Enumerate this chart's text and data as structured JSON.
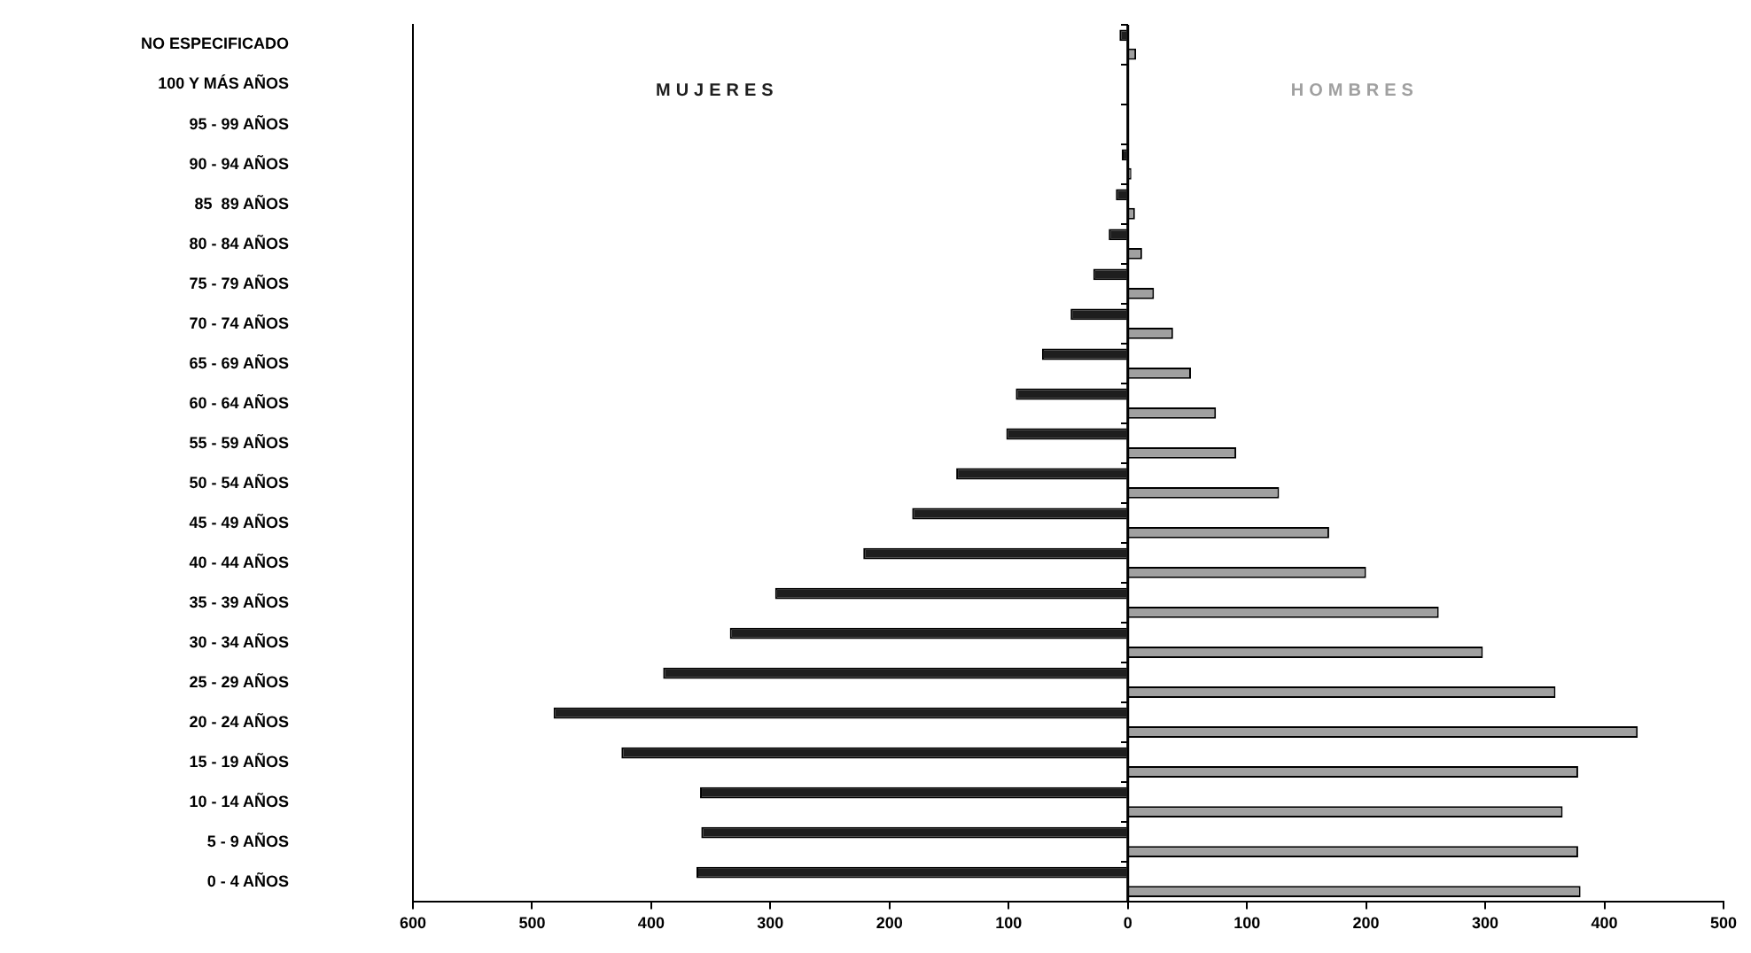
{
  "chart_data": {
    "type": "bar",
    "orientation": "horizontal",
    "categories": [
      "NO ESPECIFICADO",
      "100 Y MÁS AÑOS",
      "95 - 99 AÑOS",
      "90 - 94 AÑOS",
      "85  89 AÑOS",
      "80 - 84 AÑOS",
      "75 - 79 AÑOS",
      "70 - 74 AÑOS",
      "65 - 69 AÑOS",
      "60 - 64 AÑOS",
      "55 - 59 AÑOS",
      "50 - 54 AÑOS",
      "45 - 49 AÑOS",
      "40 - 44 AÑOS",
      "35 - 39 AÑOS",
      "30 - 34 AÑOS",
      "25 - 29 AÑOS",
      "20 - 24 AÑOS",
      "15 - 19 AÑOS",
      "10 - 14 AÑOS",
      "5 - 9 AÑOS",
      "0 - 4 AÑOS"
    ],
    "series": [
      {
        "name": "MUJERES",
        "color": "#1e1e1e",
        "values": [
          -7,
          null,
          null,
          -5,
          -10,
          -16,
          -29,
          -48,
          -72,
          -94,
          -102,
          -144,
          -181,
          -222,
          -296,
          -334,
          -390,
          -482,
          -425,
          -359,
          -358,
          -362
        ]
      },
      {
        "name": "HOMBRES",
        "color": "#a0a0a0",
        "values": [
          7,
          0,
          1,
          3,
          6,
          12,
          22,
          38,
          53,
          74,
          91,
          127,
          169,
          200,
          261,
          298,
          359,
          428,
          378,
          365,
          378,
          380
        ]
      }
    ],
    "xlim": [
      -600,
      500
    ],
    "xticks": [
      {
        "value": -600,
        "label": "600"
      },
      {
        "value": -500,
        "label": "500"
      },
      {
        "value": -400,
        "label": "400"
      },
      {
        "value": -300,
        "label": "300"
      },
      {
        "value": -200,
        "label": "200"
      },
      {
        "value": -100,
        "label": "100"
      },
      0,
      100,
      200,
      300,
      400,
      500
    ],
    "ref_lines": [
      {
        "axis": "x",
        "value": 0,
        "color": "#000000"
      }
    ],
    "grid": false,
    "legend": false
  }
}
